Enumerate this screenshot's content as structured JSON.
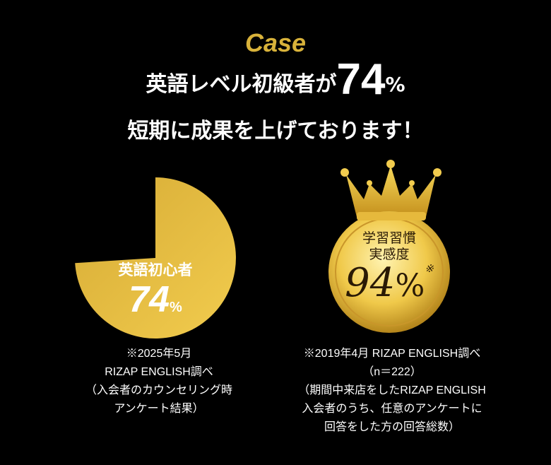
{
  "heading": {
    "case": "Case",
    "line1_prefix": "英語レベル初級者が",
    "line1_number": "74",
    "line1_unit": "%",
    "line2": "短期に成果を上げております！"
  },
  "pie": {
    "label": "英語初心者",
    "value_text": "74",
    "unit": "%",
    "value": 74,
    "color": "#e3b93f"
  },
  "medal": {
    "line1": "学習習慣",
    "line2": "実感度",
    "value_text": "94",
    "unit": "%",
    "mark": "※",
    "value": 94,
    "color": "#e8c24a"
  },
  "note_left": [
    "※2025年5月",
    "RIZAP ENGLISH調べ",
    "（入会者のカウンセリング時",
    "アンケート結果）"
  ],
  "note_right": [
    "※2019年4月 RIZAP ENGLISH調べ",
    "（n＝222）",
    "（期間中来店をしたRIZAP ENGLISH",
    "入会者のうち、任意のアンケートに",
    "回答をした方の回答総数）"
  ]
}
